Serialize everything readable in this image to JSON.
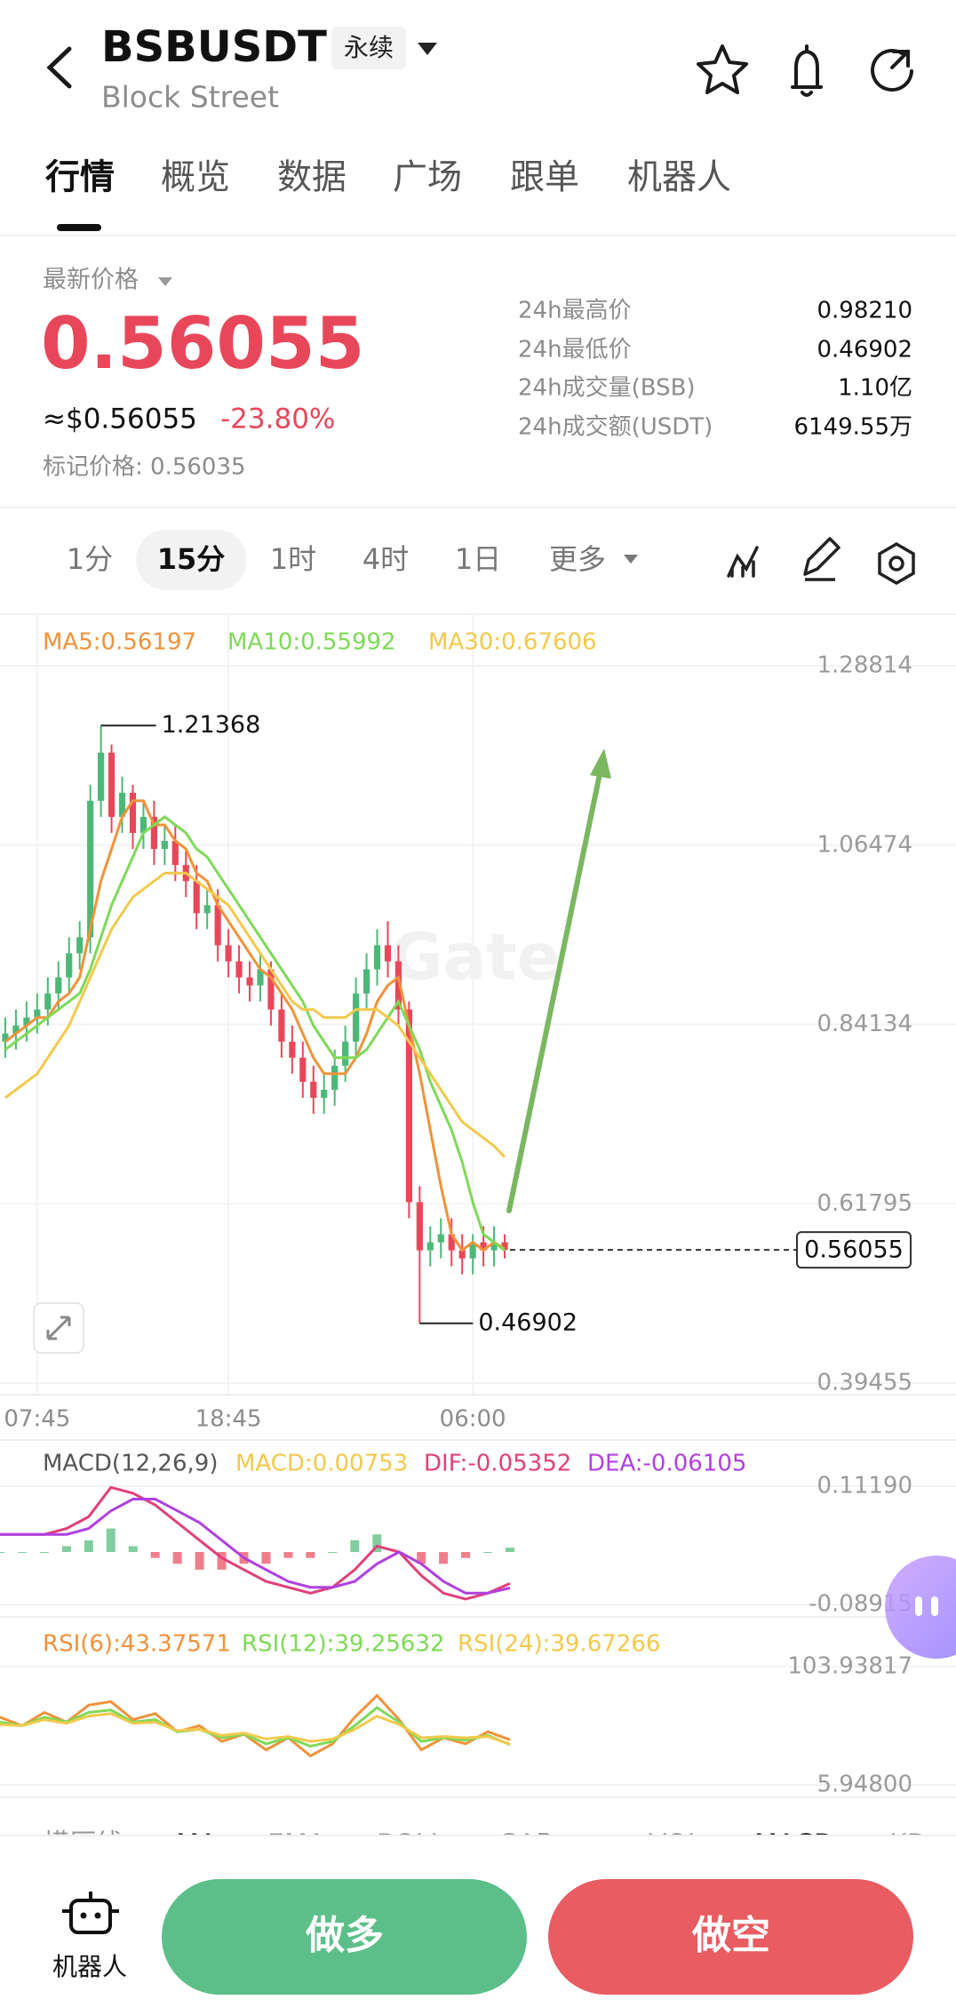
{
  "header": {
    "title": "BSBUSDT",
    "badge": "永续",
    "subtitle": "Block Street"
  },
  "tabs": [
    "行情",
    "概览",
    "数据",
    "广场",
    "跟单",
    "机器人"
  ],
  "price": {
    "label": "最新价格",
    "last": "0.56055",
    "usd": "≈$0.56055",
    "change": "-23.80%",
    "mark": "标记价格: 0.56035"
  },
  "stats": [
    {
      "label": "24h最高价",
      "value": "0.98210"
    },
    {
      "label": "24h最低价",
      "value": "0.46902"
    },
    {
      "label": "24h成交量(BSB)",
      "value": "1.10亿"
    },
    {
      "label": "24h成交额(USDT)",
      "value": "6149.55万"
    }
  ],
  "timeframes": [
    "1分",
    "15分",
    "1时",
    "4时",
    "1日",
    "更多"
  ],
  "watermark": "Gate",
  "chart_data": [
    {
      "type": "candlestick",
      "categories": [
        null,
        null,
        null,
        "07:45",
        null,
        null,
        null,
        null,
        null,
        null,
        null,
        null,
        null,
        null,
        null,
        null,
        null,
        null,
        null,
        null,
        null,
        "18:45",
        null,
        null,
        null,
        null,
        null,
        null,
        null,
        null,
        null,
        null,
        null,
        null,
        null,
        null,
        null,
        null,
        null,
        null,
        null,
        null,
        null,
        null,
        "06:00",
        null,
        null,
        null
      ],
      "open": [
        0.82,
        0.83,
        0.84,
        0.85,
        0.86,
        0.88,
        0.9,
        0.93,
        0.95,
        1.12,
        1.18,
        1.1,
        1.13,
        1.08,
        1.1,
        1.06,
        1.07,
        1.04,
        1.02,
        0.98,
        0.99,
        0.94,
        0.92,
        0.9,
        0.89,
        0.91,
        0.86,
        0.82,
        0.8,
        0.77,
        0.75,
        0.76,
        0.79,
        0.82,
        0.88,
        0.91,
        0.94,
        0.92,
        0.86,
        0.62,
        0.56,
        0.57,
        0.58,
        0.56,
        0.55,
        0.57,
        0.56,
        0.57
      ],
      "high": [
        0.85,
        0.86,
        0.87,
        0.88,
        0.9,
        0.92,
        0.95,
        0.97,
        1.14,
        1.21368,
        1.19,
        1.15,
        1.14,
        1.12,
        1.12,
        1.09,
        1.09,
        1.06,
        1.04,
        1.01,
        1.01,
        0.96,
        0.94,
        0.92,
        0.93,
        0.92,
        0.88,
        0.84,
        0.82,
        0.79,
        0.78,
        0.81,
        0.84,
        0.9,
        0.93,
        0.96,
        0.97,
        0.94,
        0.87,
        0.64,
        0.59,
        0.6,
        0.6,
        0.58,
        0.58,
        0.59,
        0.59,
        0.58
      ],
      "low": [
        0.8,
        0.81,
        0.82,
        0.83,
        0.84,
        0.86,
        0.88,
        0.91,
        0.93,
        1.1,
        1.08,
        1.08,
        1.06,
        1.06,
        1.04,
        1.04,
        1.02,
        1.0,
        0.96,
        0.96,
        0.92,
        0.9,
        0.88,
        0.87,
        0.87,
        0.84,
        0.8,
        0.78,
        0.75,
        0.73,
        0.73,
        0.74,
        0.77,
        0.8,
        0.86,
        0.89,
        0.9,
        0.84,
        0.6,
        0.46902,
        0.54,
        0.55,
        0.54,
        0.53,
        0.53,
        0.54,
        0.54,
        0.55
      ],
      "close": [
        0.83,
        0.84,
        0.85,
        0.86,
        0.88,
        0.9,
        0.93,
        0.95,
        1.12,
        1.18,
        1.1,
        1.13,
        1.08,
        1.1,
        1.06,
        1.07,
        1.04,
        1.02,
        0.98,
        0.99,
        0.94,
        0.92,
        0.9,
        0.89,
        0.91,
        0.86,
        0.82,
        0.8,
        0.77,
        0.75,
        0.76,
        0.79,
        0.82,
        0.88,
        0.91,
        0.94,
        0.92,
        0.86,
        0.62,
        0.56,
        0.57,
        0.58,
        0.56,
        0.55,
        0.57,
        0.56,
        0.57,
        0.56055
      ],
      "up_color": "#4cb877",
      "down_color": "#e8475a",
      "series": [
        {
          "label": "MA5:0.56197",
          "color": "#f0923a",
          "values": [
            0.82,
            0.83,
            0.84,
            0.85,
            0.85,
            0.87,
            0.88,
            0.9,
            0.96,
            1.02,
            1.06,
            1.1,
            1.12,
            1.12,
            1.09,
            1.09,
            1.07,
            1.06,
            1.03,
            1.02,
            0.99,
            0.97,
            0.95,
            0.93,
            0.91,
            0.9,
            0.88,
            0.86,
            0.83,
            0.8,
            0.78,
            0.78,
            0.78,
            0.8,
            0.83,
            0.87,
            0.89,
            0.9,
            0.84,
            0.78,
            0.71,
            0.64,
            0.58,
            0.56,
            0.57,
            0.56,
            0.57,
            0.56197
          ]
        },
        {
          "label": "MA10:0.55992",
          "color": "#7ed957",
          "values": [
            0.81,
            0.82,
            0.83,
            0.84,
            0.85,
            0.86,
            0.87,
            0.88,
            0.91,
            0.95,
            0.99,
            1.02,
            1.05,
            1.08,
            1.09,
            1.1,
            1.09,
            1.08,
            1.06,
            1.05,
            1.03,
            1.01,
            0.99,
            0.97,
            0.95,
            0.93,
            0.91,
            0.89,
            0.87,
            0.84,
            0.82,
            0.8,
            0.8,
            0.8,
            0.81,
            0.83,
            0.85,
            0.87,
            0.84,
            0.81,
            0.77,
            0.74,
            0.71,
            0.67,
            0.62,
            0.58,
            0.57,
            0.55992
          ]
        },
        {
          "label": "MA30:0.67606",
          "color": "#f2c94c",
          "values": [
            0.75,
            0.76,
            0.77,
            0.78,
            0.8,
            0.82,
            0.84,
            0.87,
            0.9,
            0.93,
            0.96,
            0.98,
            1.0,
            1.01,
            1.02,
            1.03,
            1.03,
            1.03,
            1.02,
            1.01,
            1.0,
            0.99,
            0.97,
            0.95,
            0.93,
            0.91,
            0.89,
            0.87,
            0.86,
            0.86,
            0.85,
            0.85,
            0.85,
            0.86,
            0.86,
            0.86,
            0.85,
            0.84,
            0.82,
            0.8,
            0.78,
            0.76,
            0.74,
            0.72,
            0.71,
            0.7,
            0.69,
            0.67606
          ]
        }
      ],
      "ylim": [
        0.3802,
        1.3524
      ],
      "yticks": [
        1.28814,
        1.06474,
        0.84134,
        0.61795,
        0.39455
      ],
      "grid": true
    },
    {
      "type": "macd",
      "title": "MACD(12,26,9)",
      "bars": {
        "label": "MACD:0.00753",
        "color": "#f2c94c",
        "up_color": "#4cb877",
        "down_color": "#e8475a",
        "values": [
          0,
          0,
          0,
          0.01,
          0.02,
          0.04,
          0.01,
          -0.01,
          -0.02,
          -0.03,
          -0.03,
          -0.02,
          -0.02,
          -0.01,
          -0.01,
          0,
          0.02,
          0.03,
          0,
          -0.02,
          -0.02,
          -0.01,
          0,
          0.00753
        ]
      },
      "series": [
        {
          "label": "DIF:-0.05352",
          "color": "#e0407a",
          "values": [
            0.03,
            0.03,
            0.03,
            0.04,
            0.06,
            0.11,
            0.1,
            0.08,
            0.05,
            0.02,
            -0.01,
            -0.03,
            -0.05,
            -0.06,
            -0.07,
            -0.06,
            -0.03,
            0.01,
            0.0,
            -0.04,
            -0.07,
            -0.08,
            -0.07,
            -0.05352
          ]
        },
        {
          "label": "DEA:-0.06105",
          "color": "#b040e0",
          "values": [
            0.03,
            0.03,
            0.03,
            0.03,
            0.04,
            0.07,
            0.09,
            0.09,
            0.07,
            0.05,
            0.02,
            -0.01,
            -0.03,
            -0.05,
            -0.06,
            -0.06,
            -0.05,
            -0.02,
            0.0,
            -0.02,
            -0.05,
            -0.07,
            -0.07,
            -0.06105
          ]
        }
      ],
      "ylim": [
        -0.1103,
        0.1875
      ],
      "yticks": [
        {
          "value": 0.1119,
          "label": "0.11190"
        },
        -0.08915
      ]
    },
    {
      "type": "rsi",
      "series": [
        {
          "label": "RSI(6):43.37571",
          "color": "#f0923a",
          "values": [
            62,
            55,
            66,
            58,
            72,
            75,
            60,
            65,
            50,
            55,
            42,
            48,
            35,
            45,
            30,
            40,
            62,
            80,
            60,
            35,
            45,
            40,
            50,
            43.37571
          ]
        },
        {
          "label": "RSI(12):39.25632",
          "color": "#7ed957",
          "values": [
            58,
            55,
            62,
            58,
            66,
            68,
            58,
            60,
            50,
            52,
            45,
            48,
            40,
            45,
            38,
            42,
            55,
            70,
            58,
            42,
            45,
            43,
            47,
            39.25632
          ]
        },
        {
          "label": "RSI(24):39.67266",
          "color": "#f2c94c",
          "values": [
            56,
            55,
            60,
            57,
            63,
            65,
            57,
            58,
            51,
            52,
            47,
            49,
            44,
            46,
            42,
            44,
            52,
            63,
            56,
            45,
            46,
            45,
            46,
            39.67266
          ]
        }
      ],
      "ylim": [
        -4.37,
        140.78
      ],
      "yticks": [
        103.93817,
        {
          "value": 5.948,
          "label": "5.94800"
        }
      ]
    }
  ],
  "indicator_tabs": [
    "横压线",
    "MA",
    "EMA",
    "BOLL",
    "SAR",
    "VOL",
    "MACD",
    "KD"
  ],
  "bottom": {
    "robot": "机器人",
    "long": "做多",
    "short": "做空"
  }
}
